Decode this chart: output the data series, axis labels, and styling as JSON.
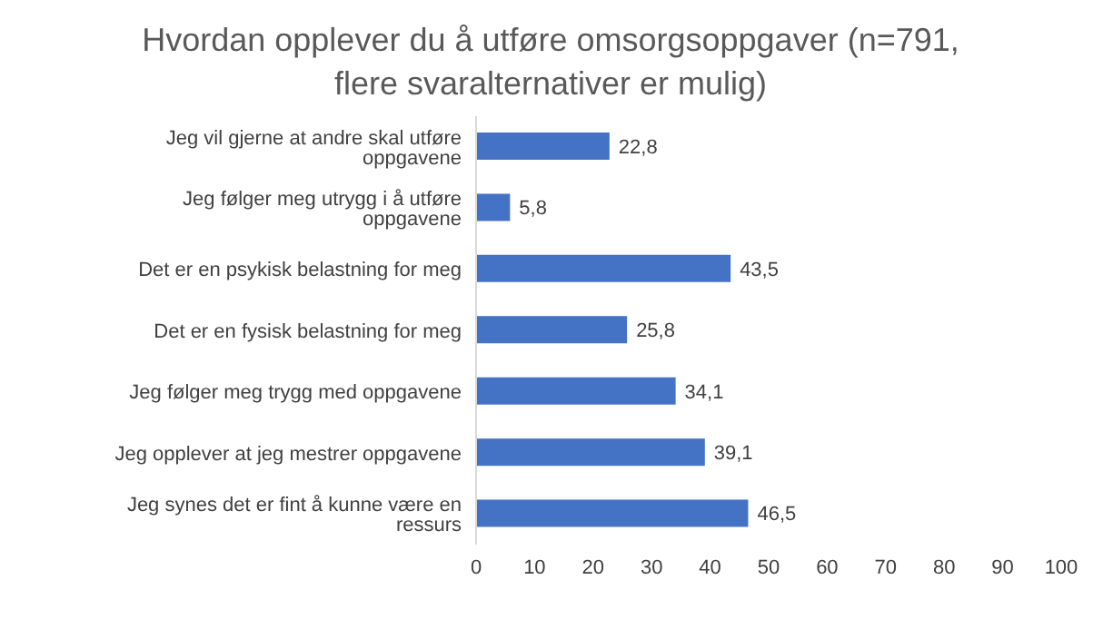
{
  "chart_data": {
    "type": "bar",
    "orientation": "horizontal",
    "title": "Hvordan opplever du å utføre omsorgsoppgaver (n=791, flere svaralternativer er mulig)",
    "categories": [
      "Jeg vil gjerne at andre skal utføre oppgavene",
      "Jeg følger meg utrygg i å utføre oppgavene",
      "Det er en psykisk belastning for meg",
      "Det er en fysisk belastning for meg",
      "Jeg følger meg trygg med oppgavene",
      "Jeg opplever at jeg mestrer oppgavene",
      "Jeg synes det er fint å kunne være en ressurs"
    ],
    "values": [
      22.8,
      5.8,
      43.5,
      25.8,
      34.1,
      39.1,
      46.5
    ],
    "color": "#4472c4",
    "xlim": [
      0,
      100
    ],
    "xticks": [
      0,
      10,
      20,
      30,
      40,
      50,
      60,
      70,
      80,
      90,
      100
    ],
    "value_labels": [
      "22,8",
      "5,8",
      "43,5",
      "25,8",
      "34,1",
      "39,1",
      "46,5"
    ]
  }
}
